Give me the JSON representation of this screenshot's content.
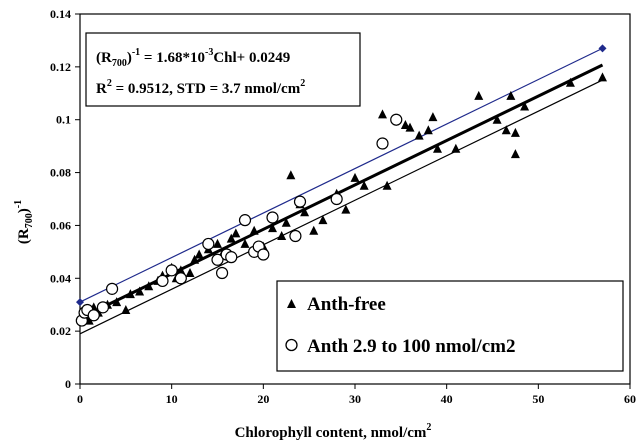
{
  "chart_data": {
    "type": "scatter",
    "xlabel": "Chlorophyll content, nmol/cm",
    "xlabel_sup": "2",
    "ylabel": "(R",
    "ylabel_sub": "700",
    "ylabel_tail": ")",
    "ylabel_sup": "-1",
    "xlim": [
      0,
      60
    ],
    "ylim": [
      0,
      0.14
    ],
    "x_ticks": [
      0,
      10,
      20,
      30,
      40,
      50,
      60
    ],
    "y_ticks": [
      0,
      0.02,
      0.04,
      0.06,
      0.08,
      0.1,
      0.12,
      0.14
    ],
    "x_tick_labels": [
      "0",
      "10",
      "20",
      "30",
      "40",
      "50",
      "60"
    ],
    "y_tick_labels": [
      "0",
      "0.02",
      "0.04",
      "0.06",
      "0.08",
      "0.1",
      "0.12",
      "0.14"
    ],
    "grid": false,
    "legend_position": "bottom-right",
    "equation": {
      "line1_a": "(R",
      "line1_sub": "700",
      "line1_b": ")",
      "line1_sup": "-1",
      "line1_c": " = 1.68*10",
      "line1_sup2": "-3",
      "line1_d": "Chl+ 0.0249",
      "line2_a": "R",
      "line2_sup": "2",
      "line2_b": " = 0.9512, STD = 3.7 nmol/cm",
      "line2_sup2": "2"
    },
    "series": [
      {
        "name": "Anth-free",
        "marker": "triangle",
        "points": [
          [
            0.5,
            0.026
          ],
          [
            1.0,
            0.024
          ],
          [
            1.5,
            0.029
          ],
          [
            2.0,
            0.027
          ],
          [
            3.0,
            0.03
          ],
          [
            4.0,
            0.031
          ],
          [
            5.0,
            0.028
          ],
          [
            5.5,
            0.034
          ],
          [
            6.5,
            0.035
          ],
          [
            7.5,
            0.037
          ],
          [
            8.5,
            0.039
          ],
          [
            9.0,
            0.041
          ],
          [
            10.0,
            0.044
          ],
          [
            10.5,
            0.04
          ],
          [
            11.0,
            0.043
          ],
          [
            12.0,
            0.042
          ],
          [
            12.5,
            0.047
          ],
          [
            13.0,
            0.049
          ],
          [
            14.0,
            0.051
          ],
          [
            15.0,
            0.053
          ],
          [
            15.5,
            0.049
          ],
          [
            16.5,
            0.055
          ],
          [
            17.0,
            0.057
          ],
          [
            18.0,
            0.053
          ],
          [
            19.0,
            0.058
          ],
          [
            20.0,
            0.052
          ],
          [
            21.0,
            0.059
          ],
          [
            22.0,
            0.056
          ],
          [
            22.5,
            0.061
          ],
          [
            23.0,
            0.079
          ],
          [
            24.0,
            0.068
          ],
          [
            24.5,
            0.065
          ],
          [
            25.5,
            0.058
          ],
          [
            26.5,
            0.062
          ],
          [
            28.0,
            0.072
          ],
          [
            29.0,
            0.066
          ],
          [
            30.0,
            0.078
          ],
          [
            31.0,
            0.075
          ],
          [
            33.0,
            0.102
          ],
          [
            33.5,
            0.075
          ],
          [
            35.5,
            0.098
          ],
          [
            36.0,
            0.097
          ],
          [
            37.0,
            0.094
          ],
          [
            38.0,
            0.096
          ],
          [
            38.5,
            0.101
          ],
          [
            39.0,
            0.089
          ],
          [
            41.0,
            0.089
          ],
          [
            43.5,
            0.109
          ],
          [
            45.5,
            0.1
          ],
          [
            46.5,
            0.096
          ],
          [
            47.0,
            0.109
          ],
          [
            47.5,
            0.087
          ],
          [
            47.5,
            0.095
          ],
          [
            48.5,
            0.105
          ],
          [
            53.5,
            0.114
          ],
          [
            57.0,
            0.116
          ]
        ]
      },
      {
        "name": "Anth 2.9 to 100 nmol/cm2",
        "marker": "circle",
        "points": [
          [
            0.2,
            0.024
          ],
          [
            0.5,
            0.027
          ],
          [
            0.8,
            0.028
          ],
          [
            1.5,
            0.026
          ],
          [
            2.5,
            0.029
          ],
          [
            3.5,
            0.036
          ],
          [
            9.0,
            0.039
          ],
          [
            10.0,
            0.043
          ],
          [
            11.0,
            0.04
          ],
          [
            14.0,
            0.053
          ],
          [
            15.0,
            0.047
          ],
          [
            15.5,
            0.042
          ],
          [
            16.0,
            0.049
          ],
          [
            16.5,
            0.048
          ],
          [
            18.0,
            0.062
          ],
          [
            19.0,
            0.05
          ],
          [
            19.5,
            0.052
          ],
          [
            20.0,
            0.049
          ],
          [
            21.0,
            0.063
          ],
          [
            23.5,
            0.056
          ],
          [
            24.0,
            0.069
          ],
          [
            28.0,
            0.07
          ],
          [
            33.0,
            0.091
          ],
          [
            34.5,
            0.1
          ]
        ]
      }
    ],
    "lines": [
      {
        "name": "upper",
        "color": "#1f2a8c",
        "x": [
          0,
          57
        ],
        "y": [
          0.031,
          0.127
        ],
        "width": 1.2,
        "endpoint_marker": "diamond"
      },
      {
        "name": "fit",
        "color": "#000000",
        "x": [
          0,
          57
        ],
        "y": [
          0.0249,
          0.1207
        ],
        "width": 3
      },
      {
        "name": "lower",
        "color": "#000000",
        "x": [
          0,
          57
        ],
        "y": [
          0.019,
          0.115
        ],
        "width": 1.2
      }
    ],
    "colors": {
      "marker": "#000000",
      "diamond": "#1f2a8c",
      "axis": "#000000"
    }
  }
}
